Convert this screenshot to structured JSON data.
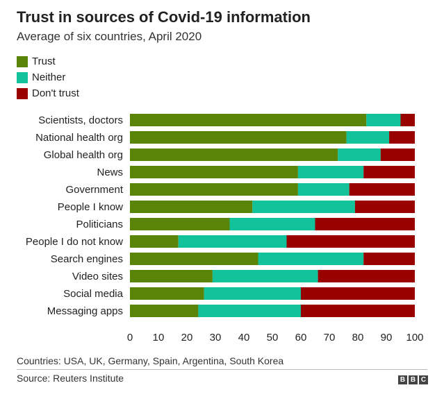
{
  "title": "Trust in sources of Covid-19 information",
  "subtitle": "Average of six countries, April 2020",
  "footnote": "Countries: USA, UK, Germany, Spain, Argentina, South Korea",
  "source": "Source: Reuters Institute",
  "logo": [
    "B",
    "B",
    "C"
  ],
  "colors": {
    "trust": "#5a8406",
    "neither": "#12c29a",
    "dont_trust": "#990000"
  },
  "chart_data": {
    "type": "bar",
    "orientation": "horizontal",
    "stacked": true,
    "categories": [
      "Scientists, doctors",
      "National health org",
      "Global health org",
      "News",
      "Government",
      "People I know",
      "Politicians",
      "People I do not know",
      "Search engines",
      "Video sites",
      "Social media",
      "Messaging apps"
    ],
    "series": [
      {
        "name": "Trust",
        "color": "#5a8406",
        "values": [
          83,
          76,
          73,
          59,
          59,
          43,
          35,
          17,
          45,
          29,
          26,
          24
        ]
      },
      {
        "name": "Neither",
        "color": "#12c29a",
        "values": [
          12,
          15,
          15,
          23,
          18,
          36,
          30,
          38,
          37,
          37,
          34,
          36
        ]
      },
      {
        "name": "Don't trust",
        "color": "#990000",
        "values": [
          5,
          9,
          12,
          18,
          23,
          21,
          35,
          45,
          18,
          34,
          40,
          40
        ]
      }
    ],
    "xticks": [
      "0",
      "10",
      "20",
      "30",
      "40",
      "50",
      "60",
      "70",
      "80",
      "90",
      "100"
    ],
    "xlim": [
      0,
      100
    ],
    "legend_position": "top-left",
    "grid": false
  }
}
